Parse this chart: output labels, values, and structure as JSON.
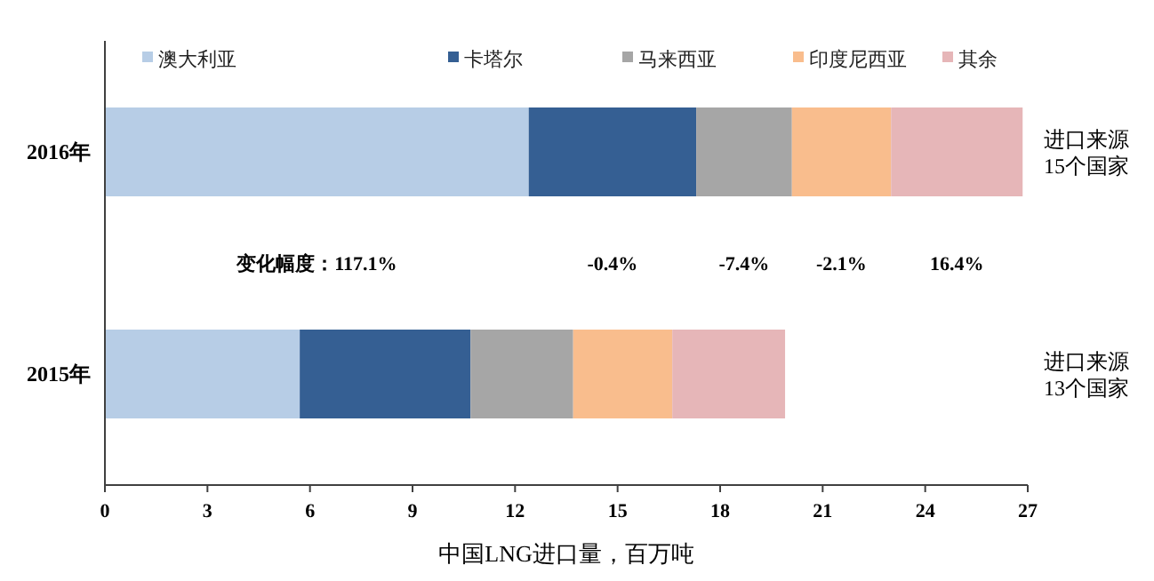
{
  "chart_data": {
    "type": "bar",
    "orientation": "horizontal",
    "stacked": true,
    "xlabel": "中国LNG进口量，百万吨",
    "categories": [
      "2016年",
      "2015年"
    ],
    "series": [
      {
        "name": "澳大利亚",
        "color": "#b7cde6",
        "values": [
          12.4,
          5.7
        ]
      },
      {
        "name": "卡塔尔",
        "color": "#355f93",
        "values": [
          4.9,
          5.0
        ]
      },
      {
        "name": "马来西亚",
        "color": "#a6a6a6",
        "values": [
          2.8,
          3.0
        ]
      },
      {
        "name": "印度尼西亚",
        "color": "#f9bd8d",
        "values": [
          2.9,
          2.9
        ]
      },
      {
        "name": "其余",
        "color": "#e6b6b8",
        "values": [
          3.85,
          3.3
        ]
      }
    ],
    "xlim": [
      0,
      27
    ],
    "xticks": [
      0,
      3,
      6,
      9,
      12,
      15,
      18,
      21,
      24,
      27
    ],
    "grid": false,
    "legend": "top",
    "annotations": [
      "变化幅度：117.1%",
      "-0.4%",
      "-7.4%",
      "-2.1%",
      "16.4%",
      "进口来源\n15个国家",
      "进口来源\n13个国家"
    ]
  }
}
